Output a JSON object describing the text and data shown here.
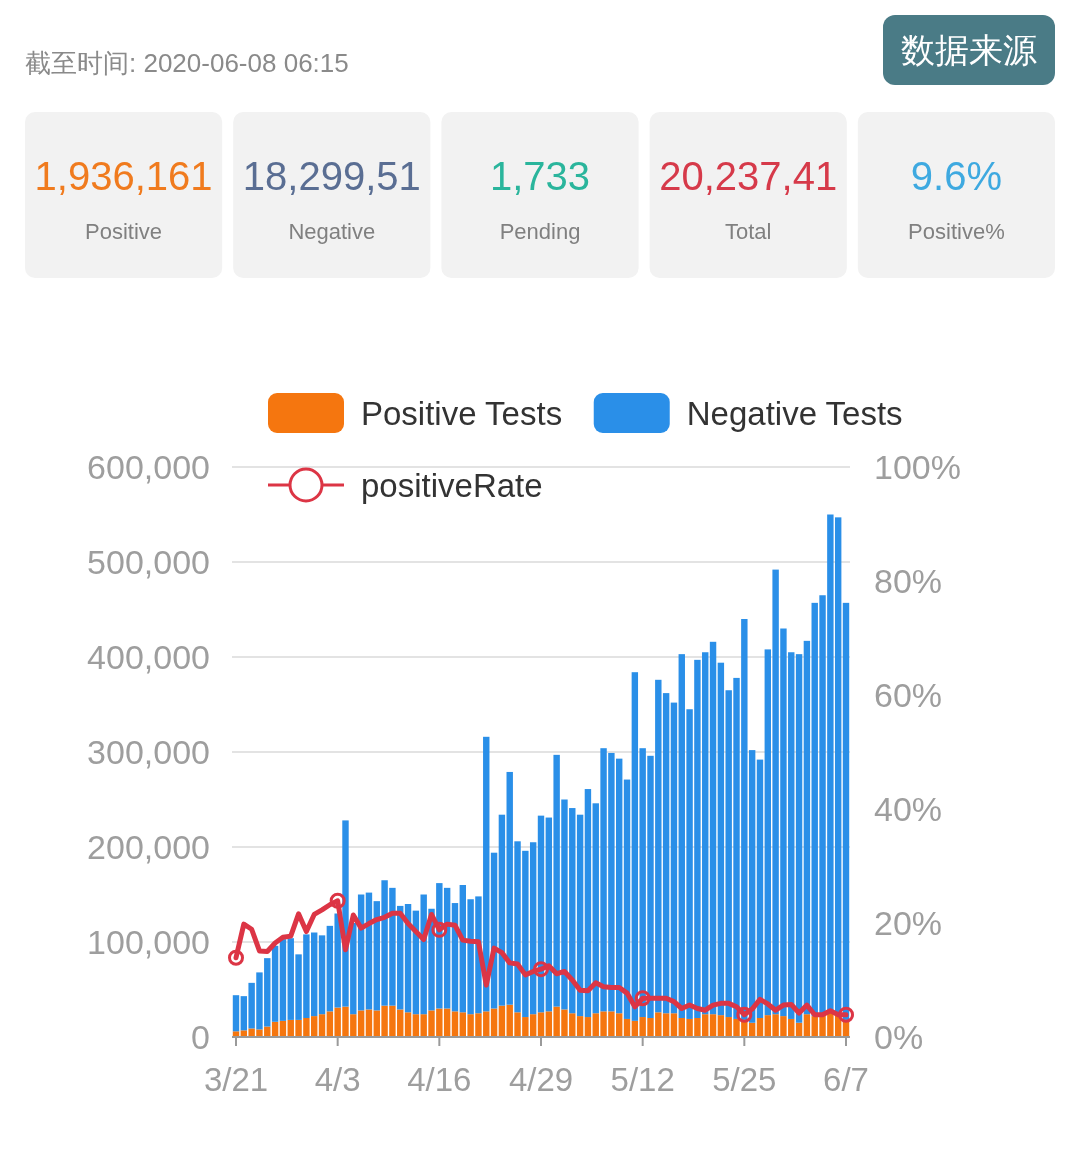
{
  "chart_data": [
    {
      "type": "other",
      "title": "截至时间: 2020-06-08 06:15",
      "annotations": [
        "数据来源"
      ],
      "categories": [
        "Positive",
        "Negative",
        "Pending",
        "Total",
        "Positive%"
      ],
      "value_labels": [
        "1,936,161",
        "18,299,51",
        "1,733",
        "20,237,41",
        "9.6%"
      ],
      "colors": [
        "#f07b1e",
        "#5a6e93",
        "#2ab59c",
        "#d63a4a",
        "#3ea9e0"
      ]
    },
    {
      "type": "bar",
      "stacked": true,
      "grid": "y",
      "legend": "top",
      "categories": [
        "3/21",
        null,
        null,
        null,
        null,
        null,
        null,
        null,
        null,
        null,
        null,
        null,
        null,
        "4/3",
        null,
        null,
        null,
        null,
        null,
        null,
        null,
        null,
        null,
        null,
        null,
        null,
        "4/16",
        null,
        null,
        null,
        null,
        null,
        null,
        null,
        null,
        null,
        null,
        null,
        null,
        "4/29",
        null,
        null,
        null,
        null,
        null,
        null,
        null,
        null,
        null,
        null,
        null,
        null,
        "5/12",
        null,
        null,
        null,
        null,
        null,
        null,
        null,
        null,
        null,
        null,
        null,
        null,
        "5/25",
        null,
        null,
        null,
        null,
        null,
        null,
        null,
        null,
        null,
        null,
        null,
        null,
        "6/7"
      ],
      "ylim": [
        0,
        600000
      ],
      "yticks": [
        0,
        {
          "value": 100000,
          "label": "100,000"
        },
        {
          "value": 200000,
          "label": "200,000"
        },
        {
          "value": 300000,
          "label": "300,000"
        },
        {
          "value": 400000,
          "label": "400,000"
        },
        {
          "value": 500000,
          "label": "500,000"
        },
        {
          "value": 600000,
          "label": "600,000"
        }
      ],
      "y2lim": [
        0,
        100
      ],
      "y2ticks": [
        {
          "value": 0,
          "label": "0%"
        },
        {
          "value": 20,
          "label": "20%"
        },
        {
          "value": 40,
          "label": "40%"
        },
        {
          "value": 60,
          "label": "60%"
        },
        {
          "value": 80,
          "label": "80%"
        },
        {
          "value": 100,
          "label": "100%"
        }
      ],
      "series": [
        {
          "name": "Positive Tests",
          "color": "#f5760f",
          "values": [
            6000,
            7000,
            9000,
            8000,
            11000,
            16000,
            17000,
            18000,
            18000,
            20000,
            22000,
            24000,
            27000,
            31000,
            32000,
            24000,
            28000,
            29000,
            28000,
            33000,
            33000,
            29000,
            26000,
            24000,
            24000,
            28000,
            30000,
            30000,
            27000,
            26000,
            24000,
            25000,
            27000,
            30000,
            33000,
            34000,
            26000,
            21000,
            24000,
            26000,
            27000,
            32000,
            29000,
            25000,
            22000,
            21000,
            25000,
            27000,
            27000,
            25000,
            19000,
            17000,
            21000,
            20000,
            26000,
            25000,
            25000,
            20000,
            19000,
            20000,
            24000,
            24000,
            23000,
            21000,
            19000,
            18000,
            15000,
            20000,
            23000,
            24000,
            22000,
            19000,
            15000,
            24000,
            22000,
            24000,
            27000,
            24000,
            18000
          ]
        },
        {
          "name": "Negative Tests",
          "color": "#2a8fe8",
          "values": [
            38000,
            36000,
            48000,
            60000,
            72000,
            80000,
            86000,
            86000,
            69000,
            88000,
            88000,
            83000,
            90000,
            99000,
            196000,
            96000,
            122000,
            123000,
            115000,
            132000,
            124000,
            109000,
            114000,
            109000,
            126000,
            107000,
            132000,
            127000,
            114000,
            134000,
            121000,
            123000,
            289000,
            164000,
            201000,
            245000,
            180000,
            175000,
            181000,
            207000,
            204000,
            265000,
            221000,
            216000,
            212000,
            240000,
            221000,
            277000,
            272000,
            268000,
            252000,
            367000,
            283000,
            276000,
            350000,
            337000,
            327000,
            383000,
            326000,
            377000,
            381000,
            392000,
            371000,
            344000,
            359000,
            422000,
            287000,
            272000,
            385000,
            468000,
            408000,
            386000,
            388000,
            393000,
            435000,
            441000,
            523000,
            523000,
            439000
          ]
        },
        {
          "name": "positiveRate",
          "type": "line",
          "axis": "y2",
          "color": "#dc3545",
          "values": [
            13.9,
            19.8,
            18.9,
            15.1,
            15.0,
            16.5,
            17.5,
            17.7,
            21.6,
            18.5,
            21.5,
            22.3,
            23.2,
            23.9,
            15.3,
            21.4,
            19.1,
            19.9,
            20.6,
            21.0,
            21.7,
            21.7,
            19.9,
            18.5,
            17.1,
            21.5,
            18.8,
            19.8,
            19.6,
            17.0,
            16.8,
            16.7,
            9.1,
            15.6,
            14.8,
            13.0,
            12.8,
            10.9,
            11.5,
            11.9,
            12.5,
            11.1,
            11.5,
            10.0,
            8.2,
            8.1,
            9.5,
            8.8,
            8.7,
            8.7,
            7.7,
            5.3,
            6.8,
            6.8,
            6.8,
            6.8,
            6.2,
            5.0,
            5.6,
            5.0,
            4.7,
            5.6,
            5.9,
            5.9,
            5.3,
            3.9,
            4.9,
            6.6,
            5.8,
            4.7,
            5.6,
            5.7,
            4.2,
            5.6,
            3.9,
            3.9,
            4.6,
            3.9,
            3.9
          ]
        },
        {
          "type": "scatter",
          "axis": "y2",
          "marker": "circle",
          "color": "#dc3545",
          "values": [
            13.9,
            null,
            null,
            null,
            null,
            null,
            null,
            null,
            null,
            null,
            null,
            null,
            null,
            23.9,
            null,
            null,
            null,
            null,
            null,
            null,
            null,
            null,
            null,
            null,
            null,
            null,
            18.8,
            null,
            null,
            null,
            null,
            null,
            null,
            null,
            null,
            null,
            null,
            null,
            null,
            11.9,
            null,
            null,
            null,
            null,
            null,
            null,
            null,
            null,
            null,
            null,
            null,
            null,
            6.8,
            null,
            null,
            null,
            null,
            null,
            null,
            null,
            null,
            null,
            null,
            null,
            null,
            3.9,
            null,
            null,
            null,
            null,
            null,
            null,
            null,
            null,
            null,
            null,
            null,
            null,
            3.9
          ]
        }
      ]
    }
  ]
}
